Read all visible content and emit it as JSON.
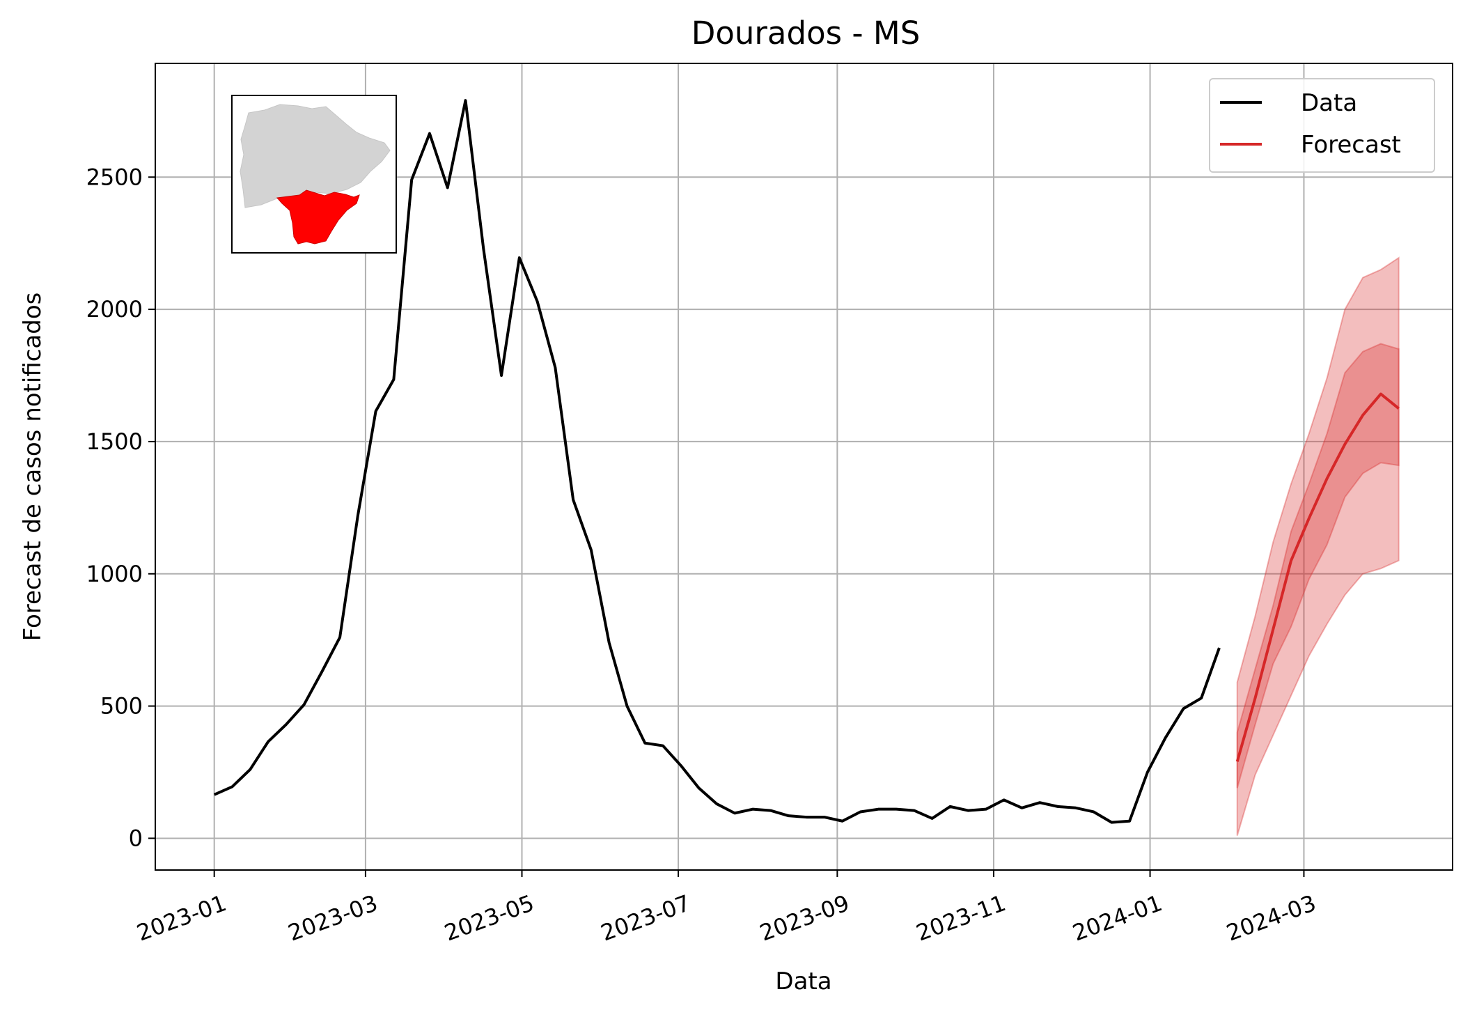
{
  "chart_data": {
    "type": "line",
    "title": "Dourados - MS",
    "xlabel": "Data",
    "ylabel": "Forecast de casos notificados",
    "x_ticks": [
      "2023-01",
      "2023-03",
      "2023-05",
      "2023-07",
      "2023-09",
      "2023-11",
      "2024-01",
      "2024-03"
    ],
    "y_ticks": [
      0,
      500,
      1000,
      1500,
      2000,
      2500
    ],
    "xlim": [
      "2022-12-09",
      "2024-04-28"
    ],
    "ylim": [
      -120,
      2930
    ],
    "grid": true,
    "legend_position": "top-right",
    "inset_map": "Mato Grosso do Sul state map with the Dourados region highlighted",
    "colors": {
      "data": "#000000",
      "forecast": "#d62728",
      "band": "#d62728",
      "map_state": "#d3d3d3",
      "map_region": "#ff0000",
      "grid": "#b0b0b0"
    },
    "series": [
      {
        "name": "Data",
        "x": [
          "2023-01-01",
          "2023-01-08",
          "2023-01-15",
          "2023-01-22",
          "2023-01-29",
          "2023-02-05",
          "2023-02-12",
          "2023-02-19",
          "2023-02-26",
          "2023-03-05",
          "2023-03-12",
          "2023-03-19",
          "2023-03-26",
          "2023-04-02",
          "2023-04-09",
          "2023-04-16",
          "2023-04-23",
          "2023-04-30",
          "2023-05-07",
          "2023-05-14",
          "2023-05-21",
          "2023-05-28",
          "2023-06-04",
          "2023-06-11",
          "2023-06-18",
          "2023-06-25",
          "2023-07-02",
          "2023-07-09",
          "2023-07-16",
          "2023-07-23",
          "2023-07-30",
          "2023-08-06",
          "2023-08-13",
          "2023-08-20",
          "2023-08-27",
          "2023-09-03",
          "2023-09-10",
          "2023-09-17",
          "2023-09-24",
          "2023-10-01",
          "2023-10-08",
          "2023-10-15",
          "2023-10-22",
          "2023-10-29",
          "2023-11-05",
          "2023-11-12",
          "2023-11-19",
          "2023-11-26",
          "2023-12-03",
          "2023-12-10",
          "2023-12-17",
          "2023-12-24",
          "2023-12-31",
          "2024-01-07",
          "2024-01-14",
          "2024-01-21",
          "2024-01-28"
        ],
        "values": [
          165,
          195,
          260,
          365,
          430,
          505,
          630,
          760,
          1220,
          1615,
          1735,
          2490,
          2665,
          2460,
          2790,
          2230,
          1750,
          2195,
          2030,
          1780,
          1280,
          1090,
          740,
          500,
          360,
          350,
          275,
          190,
          130,
          95,
          110,
          105,
          85,
          80,
          80,
          65,
          100,
          110,
          110,
          105,
          75,
          120,
          105,
          110,
          145,
          115,
          135,
          120,
          115,
          100,
          60,
          65,
          250,
          380,
          490,
          530,
          720
        ]
      },
      {
        "name": "Forecast",
        "x": [
          "2024-02-04",
          "2024-02-11",
          "2024-02-18",
          "2024-02-25",
          "2024-03-03",
          "2024-03-10",
          "2024-03-17",
          "2024-03-24",
          "2024-03-31",
          "2024-04-07"
        ],
        "values": [
          290,
          530,
          790,
          1050,
          1210,
          1360,
          1490,
          1600,
          1680,
          1625
        ],
        "band_50_low": [
          190,
          430,
          660,
          800,
          980,
          1110,
          1290,
          1380,
          1420,
          1410
        ],
        "band_50_high": [
          400,
          640,
          880,
          1160,
          1340,
          1530,
          1760,
          1840,
          1870,
          1850
        ],
        "band_90_low": [
          10,
          240,
          390,
          540,
          690,
          810,
          920,
          1000,
          1020,
          1050
        ],
        "band_90_high": [
          590,
          840,
          1120,
          1340,
          1530,
          1740,
          2000,
          2120,
          2150,
          2195
        ]
      }
    ]
  }
}
